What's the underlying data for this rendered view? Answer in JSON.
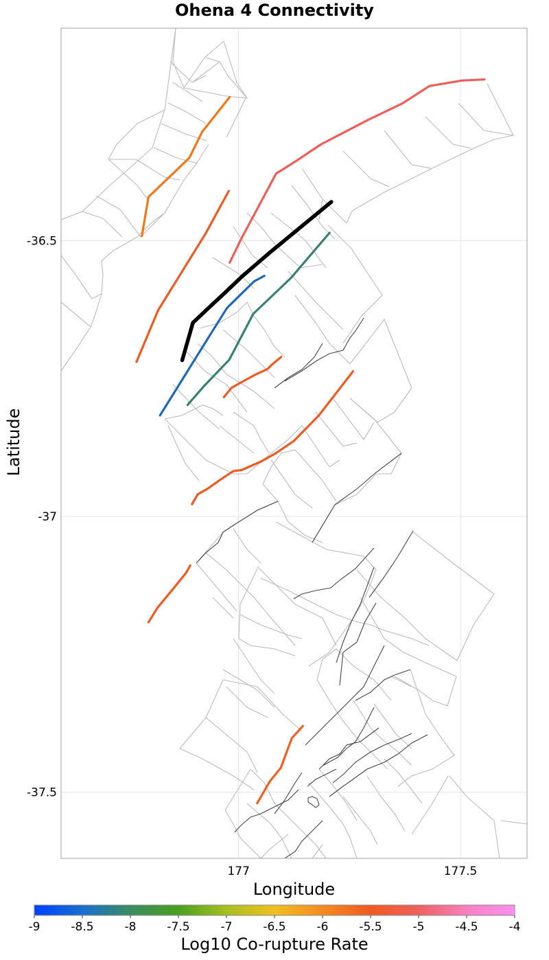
{
  "chart_data": {
    "type": "map",
    "title": "Ohena 4 Connectivity",
    "xlabel": "Longitude",
    "ylabel": "Latitude",
    "xlim": [
      176.6,
      177.65
    ],
    "ylim": [
      -37.62,
      -36.115
    ],
    "x_ticks": [
      {
        "value": 177,
        "label": "177"
      },
      {
        "value": 177.5,
        "label": "177.5"
      }
    ],
    "y_ticks": [
      {
        "value": -36.5,
        "label": "-36.5"
      },
      {
        "value": -37,
        "label": "-37"
      },
      {
        "value": -37.5,
        "label": "-37.5"
      }
    ],
    "colorbar": {
      "title": "Log10 Co-rupture Rate",
      "range": [
        -9,
        -4
      ],
      "tick_labels": [
        "-9",
        "-8.5",
        "-8",
        "-7.5",
        "-7",
        "-6.5",
        "-6",
        "-5.5",
        "-5",
        "-4.5",
        "-4"
      ],
      "colors": [
        "#0040ff",
        "#1a6fd0",
        "#3a8c60",
        "#4aa020",
        "#a6c020",
        "#f0c020",
        "#f58a20",
        "#f05a20",
        "#f06060",
        "#f880c0",
        "#f890f0"
      ]
    },
    "selected_fault": {
      "name": "Ohena 4",
      "color": "#000000",
      "trace": [
        [
          176.873,
          -36.717
        ],
        [
          176.897,
          -36.649
        ],
        [
          176.93,
          -36.624
        ],
        [
          176.97,
          -36.594
        ],
        [
          177.008,
          -36.565
        ],
        [
          177.07,
          -36.522
        ],
        [
          177.209,
          -36.43
        ]
      ]
    },
    "connected_faults": [
      {
        "log10_rate": -5.6,
        "color": "#f07818",
        "trace": [
          [
            176.782,
            -36.492
          ],
          [
            176.797,
            -36.421
          ],
          [
            176.866,
            -36.368
          ],
          [
            176.889,
            -36.35
          ],
          [
            176.918,
            -36.303
          ],
          [
            176.98,
            -36.24
          ]
        ]
      },
      {
        "log10_rate": -4.7,
        "color": "#f05c58",
        "trace": [
          [
            176.98,
            -36.54
          ],
          [
            177.006,
            -36.497
          ],
          [
            177.085,
            -36.378
          ],
          [
            177.098,
            -36.372
          ],
          [
            177.131,
            -36.355
          ],
          [
            177.185,
            -36.326
          ],
          [
            177.29,
            -36.282
          ],
          [
            177.37,
            -36.251
          ],
          [
            177.43,
            -36.22
          ],
          [
            177.503,
            -36.21
          ],
          [
            177.554,
            -36.208
          ]
        ]
      },
      {
        "log10_rate": -5.2,
        "color": "#ee5a22",
        "trace": [
          [
            176.77,
            -36.72
          ],
          [
            176.819,
            -36.626
          ],
          [
            176.926,
            -36.487
          ],
          [
            176.978,
            -36.41
          ]
        ]
      },
      {
        "log10_rate": -8.6,
        "color": "#2068b8",
        "trace": [
          [
            176.823,
            -36.817
          ],
          [
            176.867,
            -36.76
          ],
          [
            176.942,
            -36.663
          ],
          [
            176.974,
            -36.622
          ],
          [
            177.035,
            -36.574
          ],
          [
            177.058,
            -36.564
          ]
        ]
      },
      {
        "log10_rate": -7.9,
        "color": "#388070",
        "trace": [
          [
            176.885,
            -36.798
          ],
          [
            176.923,
            -36.763
          ],
          [
            176.979,
            -36.716
          ],
          [
            177.033,
            -36.633
          ],
          [
            177.119,
            -36.567
          ],
          [
            177.205,
            -36.486
          ]
        ]
      },
      {
        "log10_rate": -5.2,
        "color": "#ee5a22",
        "trace": [
          [
            176.967,
            -36.784
          ],
          [
            176.984,
            -36.767
          ],
          [
            177.004,
            -36.758
          ],
          [
            177.038,
            -36.743
          ],
          [
            177.065,
            -36.733
          ],
          [
            177.075,
            -36.725
          ],
          [
            177.096,
            -36.711
          ]
        ]
      },
      {
        "log10_rate": -5.2,
        "color": "#ee5a22",
        "trace": [
          [
            176.895,
            -36.978
          ],
          [
            176.908,
            -36.96
          ],
          [
            176.93,
            -36.95
          ],
          [
            176.96,
            -36.933
          ],
          [
            176.988,
            -36.918
          ],
          [
            177.007,
            -36.916
          ],
          [
            177.052,
            -36.9
          ],
          [
            177.085,
            -36.885
          ],
          [
            177.125,
            -36.863
          ],
          [
            177.181,
            -36.817
          ],
          [
            177.258,
            -36.737
          ]
        ]
      },
      {
        "log10_rate": -5.2,
        "color": "#ee5a22",
        "trace": [
          [
            176.797,
            -37.192
          ],
          [
            176.817,
            -37.166
          ],
          [
            176.856,
            -37.128
          ],
          [
            176.882,
            -37.102
          ],
          [
            176.891,
            -37.089
          ]
        ]
      },
      {
        "log10_rate": -5.4,
        "color": "#f06020",
        "trace": [
          [
            177.042,
            -37.52
          ],
          [
            177.07,
            -37.481
          ],
          [
            177.095,
            -37.456
          ],
          [
            177.12,
            -37.402
          ],
          [
            177.145,
            -37.38
          ]
        ]
      }
    ]
  }
}
